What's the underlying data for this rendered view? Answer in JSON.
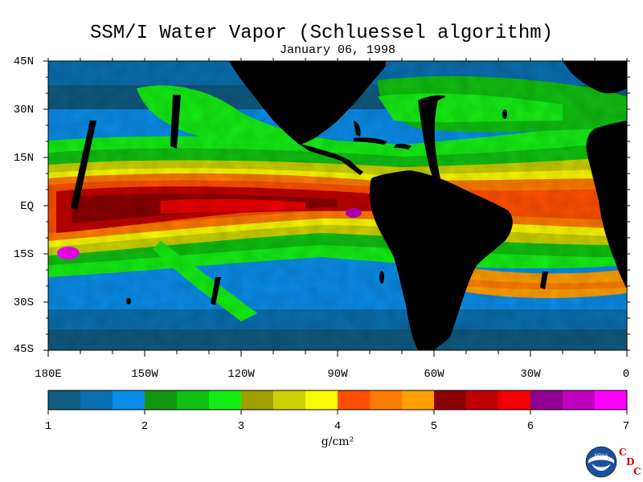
{
  "title": "SSM/I Water Vapor (Schluessel algorithm)",
  "date": "January 06, 1998",
  "lat_labels": [
    "45N",
    "30N",
    "15N",
    "EQ",
    "15S",
    "30S",
    "45S"
  ],
  "lon_labels": [
    "180E",
    "150W",
    "120W",
    "90W",
    "60W",
    "30W",
    "0"
  ],
  "colorbar": {
    "tick_labels": [
      "1",
      "2",
      "3",
      "4",
      "5",
      "6",
      "7"
    ],
    "units": "g/cm²",
    "colors": [
      "#0f5a80",
      "#0a6fb0",
      "#0a8de8",
      "#149614",
      "#10c010",
      "#14ee14",
      "#9ea000",
      "#ccd200",
      "#fafa00",
      "#ff5000",
      "#ff7c00",
      "#ffa000",
      "#8c0000",
      "#c00000",
      "#f00000",
      "#900090",
      "#c000c0",
      "#ff00ff"
    ]
  },
  "logo": {
    "org_letters": [
      "C",
      "D",
      "C"
    ],
    "noaa_text": "NOAA"
  },
  "map": {
    "land_color": "#000000",
    "lon_range": [
      -180,
      0
    ],
    "lat_range": [
      -45,
      45
    ]
  }
}
